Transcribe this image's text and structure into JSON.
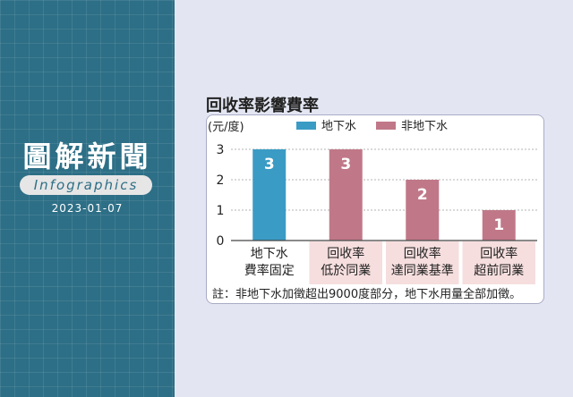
{
  "panel": {
    "title": "圖解新聞",
    "subtitle": "Infographics",
    "date": "2023-01-07"
  },
  "chart_data": {
    "type": "bar",
    "title": "回收率影響費率",
    "ylabel": "(元/度)",
    "ylim": [
      0,
      3
    ],
    "yticks": [
      0,
      1,
      2,
      3
    ],
    "categories": [
      "地下水\n費率固定",
      "回收率\n低於同業",
      "回收率\n達同業基準",
      "回收率\n超前同業"
    ],
    "values": [
      3,
      3,
      2,
      1
    ],
    "bar_series": [
      "地下水",
      "非地下水",
      "非地下水",
      "非地下水"
    ],
    "series": [
      {
        "name": "地下水",
        "color": "#3a9bc4"
      },
      {
        "name": "非地下水",
        "color": "#c07888"
      }
    ],
    "note": "註：非地下水加徵超出9000度部分，地下水用量全部加徵。"
  }
}
